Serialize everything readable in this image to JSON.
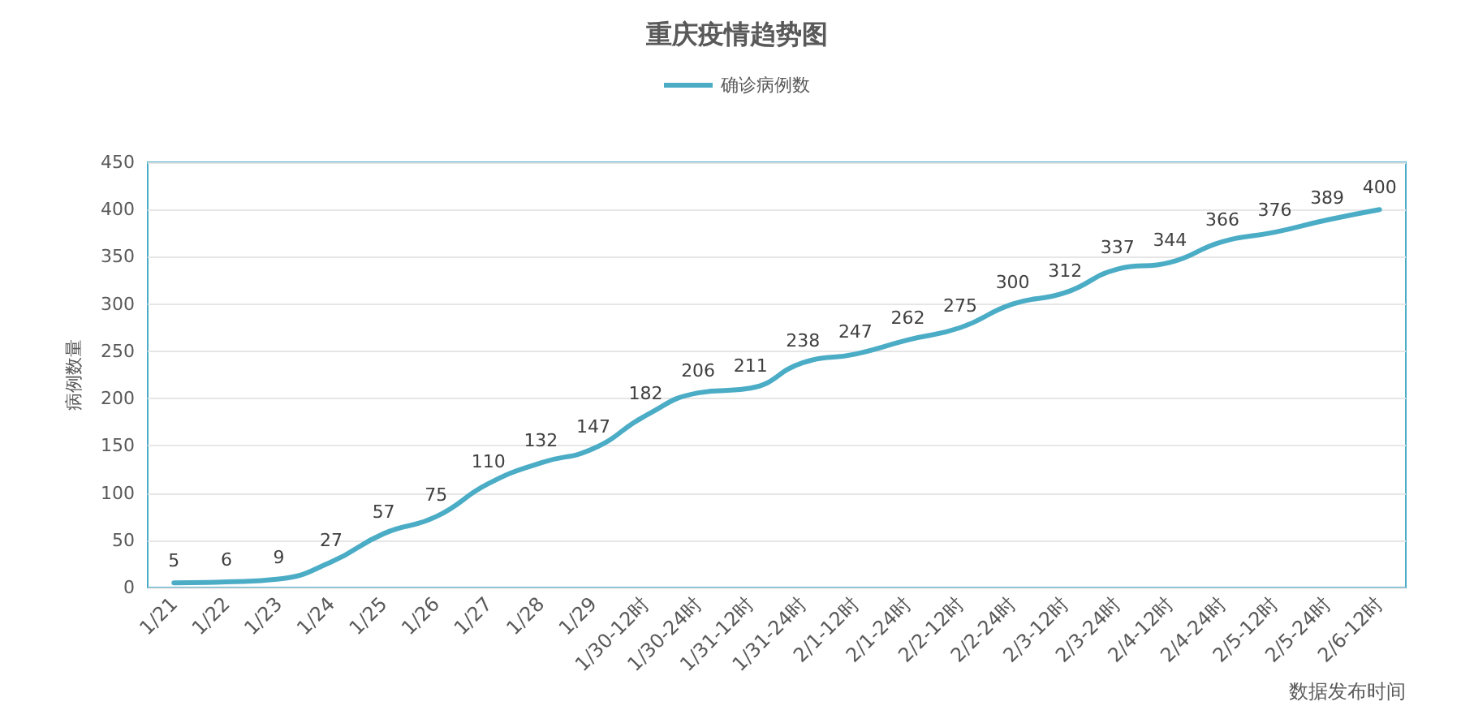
{
  "chart_data": {
    "type": "line",
    "title": "重庆疫情趋势图",
    "xlabel": "数据发布时间",
    "ylabel": "病例数量",
    "categories": [
      "1/21",
      "1/22",
      "1/23",
      "1/24",
      "1/25",
      "1/26",
      "1/27",
      "1/28",
      "1/29",
      "1/30-12时",
      "1/30-24时",
      "1/31-12时",
      "1/31-24时",
      "2/1-12时",
      "2/1-24时",
      "2/2-12时",
      "2/2-24时",
      "2/3-12时",
      "2/3-24时",
      "2/4-12时",
      "2/4-24时",
      "2/5-12时",
      "2/5-24时",
      "2/6-12时"
    ],
    "series": [
      {
        "name": "确诊病例数",
        "color": "#4bacc6",
        "values": [
          5,
          6,
          9,
          27,
          57,
          75,
          110,
          132,
          147,
          182,
          206,
          211,
          238,
          247,
          262,
          275,
          300,
          312,
          337,
          344,
          366,
          376,
          389,
          400
        ]
      }
    ],
    "ylim": [
      0,
      450
    ],
    "yticks": [
      0,
      50,
      100,
      150,
      200,
      250,
      300,
      350,
      400,
      450
    ],
    "grid": "y",
    "legend": "top",
    "data_labels": true,
    "marker": "none",
    "line_style": "solid"
  }
}
